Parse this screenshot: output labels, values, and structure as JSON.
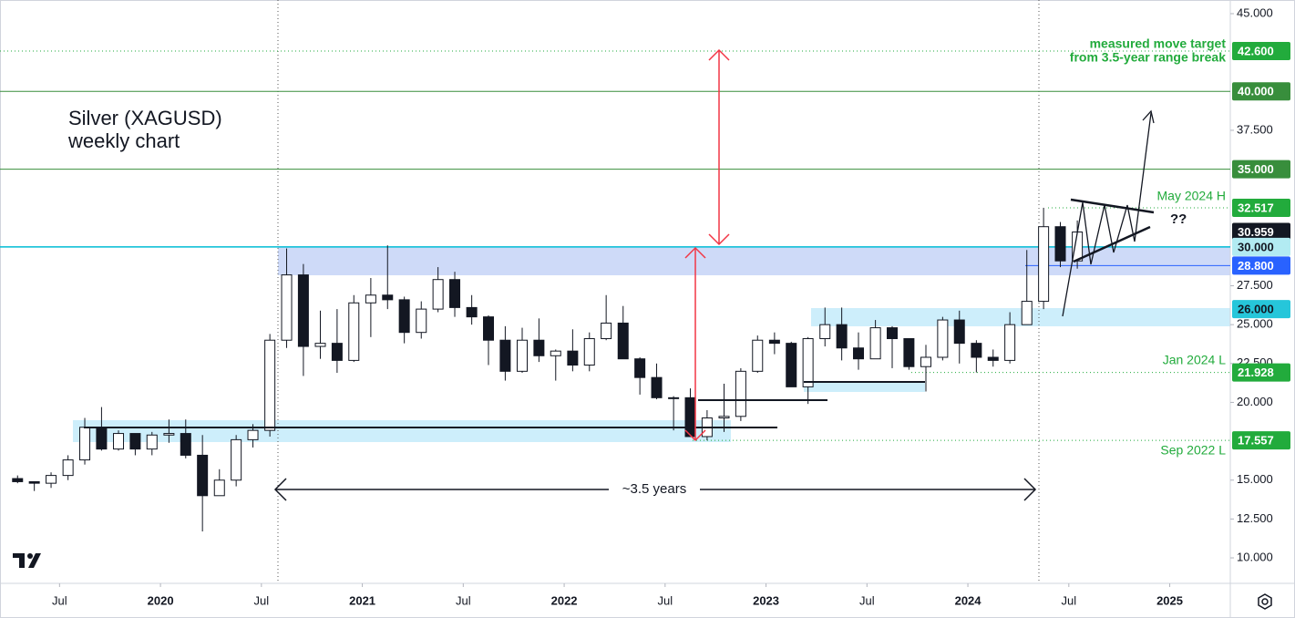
{
  "chart_data": {
    "type": "candlestick",
    "title": "Silver (XAGUSD)",
    "subtitle": "weekly chart",
    "x": [
      2019.292,
      2019.375,
      2019.458,
      2019.542,
      2019.625,
      2019.708,
      2019.792,
      2019.875,
      2019.958,
      2020.042,
      2020.125,
      2020.208,
      2020.292,
      2020.375,
      2020.458,
      2020.542,
      2020.625,
      2020.708,
      2020.792,
      2020.875,
      2020.958,
      2021.042,
      2021.125,
      2021.208,
      2021.292,
      2021.375,
      2021.458,
      2021.542,
      2021.625,
      2021.708,
      2021.792,
      2021.875,
      2021.958,
      2022.042,
      2022.125,
      2022.208,
      2022.292,
      2022.375,
      2022.458,
      2022.542,
      2022.625,
      2022.708,
      2022.792,
      2022.875,
      2022.958,
      2023.042,
      2023.125,
      2023.208,
      2023.292,
      2023.375,
      2023.458,
      2023.542,
      2023.625,
      2023.708,
      2023.792,
      2023.875,
      2023.958,
      2024.042,
      2024.125,
      2024.208,
      2024.292,
      2024.375,
      2024.458,
      2024.542
    ],
    "open": [
      15.1,
      14.9,
      14.8,
      15.3,
      16.3,
      18.4,
      17.0,
      18.0,
      17.0,
      17.9,
      18.0,
      16.6,
      14.0,
      15.0,
      17.6,
      18.2,
      24.0,
      28.2,
      23.6,
      23.8,
      22.7,
      26.4,
      26.9,
      26.6,
      24.5,
      26.0,
      27.9,
      26.1,
      25.5,
      24.0,
      22.0,
      24.0,
      23.0,
      23.3,
      22.4,
      24.1,
      25.1,
      22.8,
      21.6,
      20.3,
      20.3,
      17.8,
      19.0,
      19.1,
      22.0,
      24.0,
      23.8,
      21.0,
      24.1,
      25.0,
      23.5,
      22.8,
      24.8,
      24.1,
      22.3,
      22.9,
      25.3,
      23.8,
      22.9,
      22.7,
      25.0,
      26.5,
      31.3,
      29.1
    ],
    "high": [
      15.3,
      14.9,
      15.5,
      16.6,
      19.0,
      19.7,
      18.2,
      18.0,
      18.1,
      18.9,
      18.9,
      17.9,
      15.7,
      17.9,
      18.6,
      24.4,
      29.9,
      28.9,
      25.9,
      26.0,
      26.9,
      28.0,
      30.1,
      26.8,
      26.5,
      28.7,
      28.4,
      26.9,
      25.6,
      24.9,
      24.8,
      25.4,
      23.4,
      24.7,
      24.5,
      26.9,
      26.2,
      22.9,
      22.5,
      20.4,
      20.9,
      19.5,
      21.2,
      22.2,
      24.3,
      24.5,
      23.9,
      24.2,
      26.1,
      26.1,
      24.5,
      25.3,
      24.9,
      24.1,
      23.7,
      25.5,
      25.9,
      24.0,
      23.4,
      25.8,
      29.8,
      32.517,
      31.6,
      31.7
    ],
    "low": [
      14.8,
      14.3,
      14.5,
      15.0,
      16.0,
      16.9,
      16.9,
      16.6,
      16.6,
      17.4,
      16.4,
      11.7,
      14.0,
      14.6,
      17.1,
      17.8,
      23.5,
      21.7,
      22.8,
      21.9,
      22.6,
      24.2,
      26.0,
      23.8,
      24.1,
      25.8,
      25.5,
      25.0,
      22.4,
      21.4,
      21.9,
      22.6,
      21.4,
      22.0,
      22.0,
      24.0,
      22.8,
      20.5,
      20.2,
      18.2,
      17.9,
      17.557,
      18.1,
      18.8,
      21.9,
      23.1,
      21.2,
      19.9,
      23.6,
      22.7,
      22.1,
      22.8,
      22.2,
      22.1,
      20.7,
      22.7,
      22.5,
      21.928,
      22.3,
      22.5,
      25.0,
      26.0,
      28.7,
      28.6
    ],
    "close": [
      14.9,
      14.8,
      15.3,
      16.3,
      18.4,
      17.0,
      18.0,
      17.0,
      17.9,
      18.0,
      16.6,
      14.0,
      15.0,
      17.6,
      18.2,
      24.0,
      28.2,
      23.6,
      23.8,
      22.7,
      26.4,
      26.9,
      26.6,
      24.5,
      26.0,
      27.9,
      26.1,
      25.5,
      24.0,
      22.0,
      24.0,
      23.0,
      23.3,
      22.4,
      24.1,
      25.1,
      22.8,
      21.6,
      20.3,
      20.3,
      17.8,
      19.0,
      19.1,
      22.0,
      24.0,
      23.8,
      21.0,
      24.1,
      25.0,
      23.5,
      22.8,
      24.8,
      24.1,
      22.3,
      22.9,
      25.3,
      23.8,
      22.9,
      22.7,
      25.0,
      26.5,
      31.3,
      29.1,
      30.959
    ],
    "up_color": "#ffffff",
    "down_color": "#131722",
    "xlim": [
      2019.205,
      2025.3
    ],
    "ylim": [
      8.36,
      45.88
    ],
    "xticks": [
      {
        "value": 2019.5,
        "label": "Jul"
      },
      2020,
      {
        "value": 2020.5,
        "label": "Jul"
      },
      2021,
      {
        "value": 2021.5,
        "label": "Jul"
      },
      2022,
      {
        "value": 2022.5,
        "label": "Jul"
      },
      2023,
      {
        "value": 2023.5,
        "label": "Jul"
      },
      2024,
      {
        "value": 2024.5,
        "label": "Jul"
      },
      2025
    ],
    "yticks": [
      {
        "value": 45,
        "label": "45.000"
      },
      {
        "value": 37.5,
        "label": "37.500"
      },
      {
        "value": 27.5,
        "label": "27.500"
      },
      {
        "value": 25,
        "label": "25.000"
      },
      {
        "value": 22.5,
        "label": "22.500"
      },
      {
        "value": 20,
        "label": "20.000"
      },
      {
        "value": 15,
        "label": "15.000"
      },
      {
        "value": 12.5,
        "label": "12.500"
      },
      {
        "value": 10,
        "label": "10.000"
      }
    ],
    "price_labels": [
      {
        "value": 42.6,
        "label": "42.600",
        "color": "#22ab3c",
        "text_color": "#ffffff"
      },
      {
        "value": 40,
        "label": "40.000",
        "color": "#388e3c",
        "text_color": "#ffffff"
      },
      {
        "value": 35,
        "label": "35.000",
        "color": "#388e3c",
        "text_color": "#ffffff"
      },
      {
        "value": 32.517,
        "label": "32.517",
        "color": "#22ab3c",
        "text_color": "#ffffff"
      },
      {
        "value": 30.959,
        "label": "30.959",
        "color": "#131722",
        "text_color": "#ffffff"
      },
      {
        "value": 30,
        "label": "30.000",
        "color": "#b2ebf2",
        "text_color": "#131722"
      },
      {
        "value": 28.8,
        "label": "28.800",
        "color": "#2962ff",
        "text_color": "#ffffff"
      },
      {
        "value": 26,
        "label": "26.000",
        "color": "#26c6da",
        "text_color": "#131722"
      },
      {
        "value": 21.928,
        "label": "21.928",
        "color": "#22ab3c",
        "text_color": "#ffffff"
      },
      {
        "value": 17.557,
        "label": "17.557",
        "color": "#22ab3c",
        "text_color": "#ffffff"
      }
    ],
    "annotations": [
      "measured move target",
      "from 3.5-year range break",
      "May 2024 H",
      "Jan 2024 L",
      "Sep 2022 L",
      "??",
      "~3.5 years"
    ]
  }
}
